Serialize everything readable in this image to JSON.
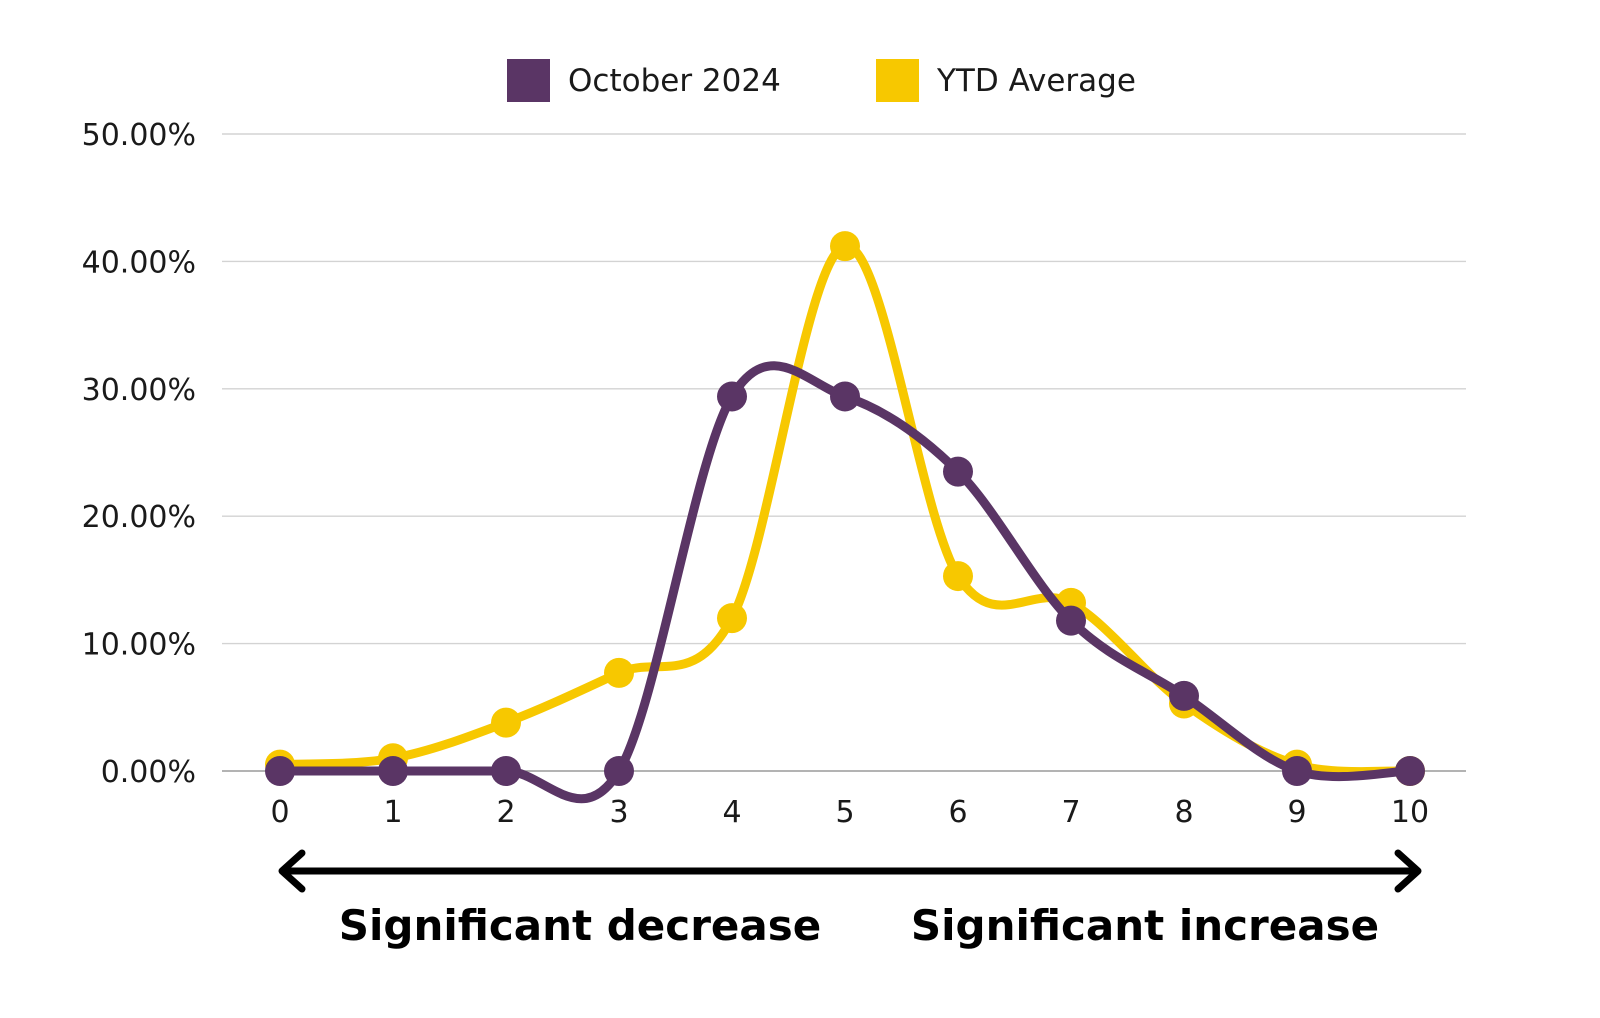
{
  "colors": {
    "october": "#5a3565",
    "ytd": "#f7c800",
    "grid": "#d3d3d3",
    "axis": "#9a9a9a",
    "arrow": "#000000"
  },
  "chart_data": {
    "type": "line",
    "smooth": true,
    "x": [
      0,
      1,
      2,
      3,
      4,
      5,
      6,
      7,
      8,
      9,
      10
    ],
    "xticks": [
      "0",
      "1",
      "2",
      "3",
      "4",
      "5",
      "6",
      "7",
      "8",
      "9",
      "10"
    ],
    "yticks": [
      "0.00%",
      "10.00%",
      "20.00%",
      "30.00%",
      "40.00%",
      "50.00%"
    ],
    "ylim": [
      0,
      50
    ],
    "xlim": [
      0,
      10
    ],
    "grid": true,
    "legend_position": "top-center",
    "series": [
      {
        "name": "October 2024",
        "color": "#5a3565",
        "values": [
          0.0,
          0.0,
          0.0,
          0.0,
          29.4,
          29.4,
          23.5,
          11.8,
          5.9,
          0.0,
          0.0
        ]
      },
      {
        "name": "YTD Average",
        "color": "#f7c800",
        "values": [
          0.5,
          1.0,
          3.8,
          7.7,
          12.0,
          41.2,
          15.3,
          13.2,
          5.3,
          0.5,
          0.0
        ]
      }
    ],
    "annotations": {
      "left": "Significant decrease",
      "right": "Significant increase"
    }
  }
}
